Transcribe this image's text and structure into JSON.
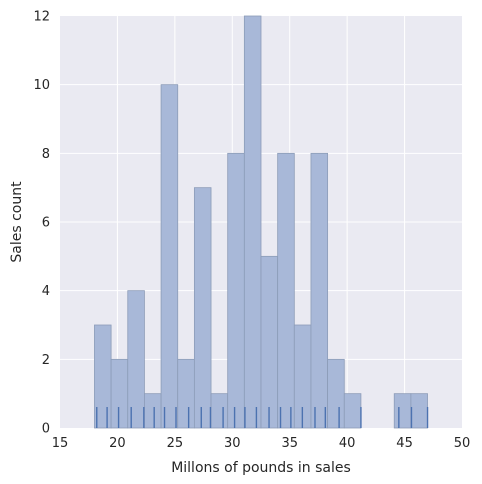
{
  "chart_data": {
    "type": "bar",
    "subtype": "histogram-with-rug",
    "title": "",
    "xlabel": "Millons of pounds in sales",
    "ylabel": "Sales count",
    "xlim": [
      15,
      50
    ],
    "ylim": [
      0,
      12
    ],
    "xticks": [
      "15",
      "20",
      "25",
      "30",
      "35",
      "40",
      "45",
      "50"
    ],
    "yticks": [
      "0",
      "2",
      "4",
      "6",
      "8",
      "10",
      "12"
    ],
    "grid": true,
    "legend": "none",
    "bin_edges": [
      18.0,
      19.45,
      20.9,
      22.35,
      23.8,
      25.25,
      26.7,
      28.15,
      29.6,
      31.05,
      32.5,
      33.95,
      35.4,
      36.85,
      38.3,
      39.75,
      41.2,
      42.65,
      44.1,
      45.55,
      47.0
    ],
    "counts": [
      3,
      2,
      4,
      1,
      10,
      2,
      7,
      1,
      8,
      12,
      5,
      8,
      3,
      8,
      2,
      1,
      0,
      0,
      1,
      1
    ],
    "rug_x": [
      18.2,
      19.1,
      20.1,
      21.2,
      22.3,
      23.2,
      24.1,
      25.1,
      26.2,
      27.3,
      28.1,
      29.2,
      30.2,
      31.1,
      32.1,
      33.2,
      34.2,
      35.1,
      36.1,
      37.2,
      38.1,
      39.3,
      41.2,
      44.5,
      45.6,
      47.0
    ],
    "colors": {
      "bar_fill": "#a8b8d8",
      "bar_stroke": "#8c9cb8",
      "rug": "#4c72b0",
      "background": "#eaeaf2",
      "grid": "#ffffff",
      "text": "#262626"
    }
  }
}
